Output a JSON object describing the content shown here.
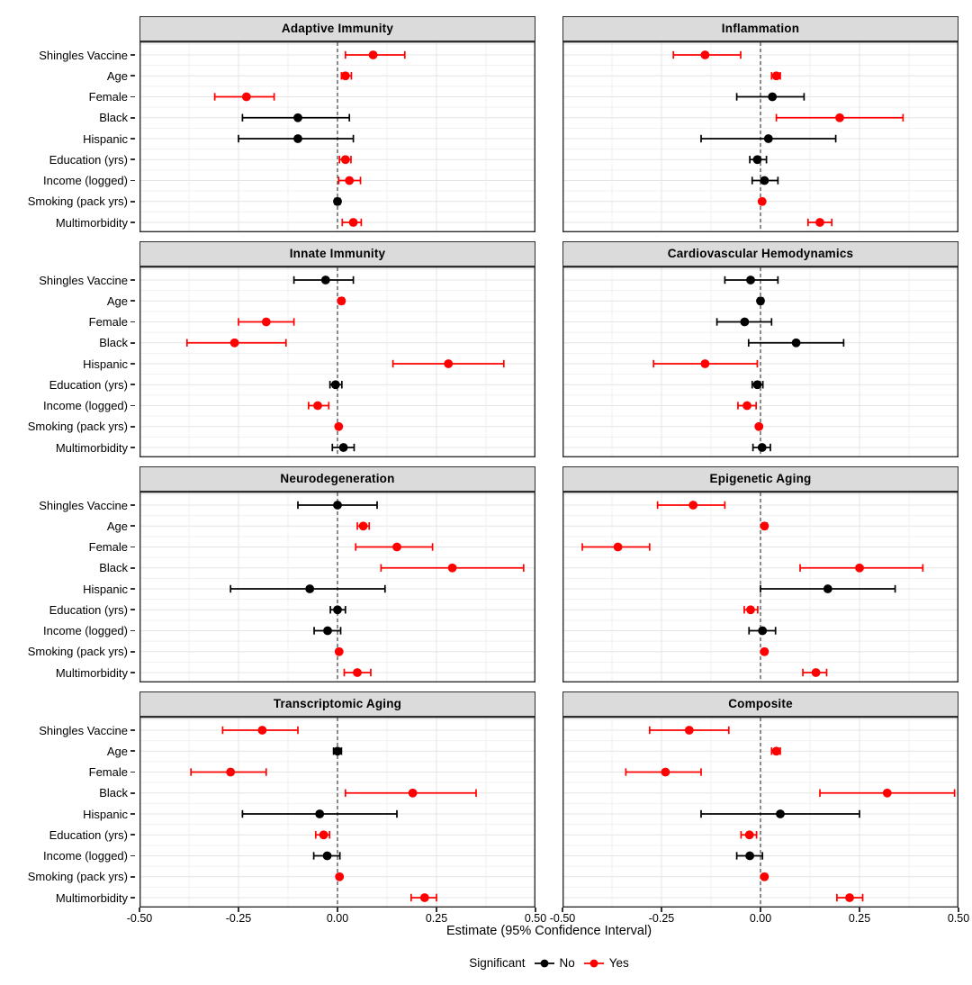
{
  "chart_data": {
    "type": "pointrange-forest",
    "layout": "4x2 small multiples, shared axes",
    "xlabel": "Estimate (95% Confidence Interval)",
    "xlim": [
      -0.5,
      0.5
    ],
    "x_ticks": [
      -0.5,
      -0.25,
      0,
      0.25,
      0.5
    ],
    "x_tick_labels": [
      "-0.50",
      "-0.25",
      "0.00",
      "0.25",
      "0.50"
    ],
    "grid": "on",
    "zero_reference_line": "dashed",
    "categories": [
      "Shingles Vaccine",
      "Age",
      "Female",
      "Black",
      "Hispanic",
      "Education (yrs)",
      "Income (logged)",
      "Smoking (pack yrs)",
      "Multimorbidity"
    ],
    "colors": {
      "no": "#000000",
      "yes": "#ff0000",
      "strip_fill": "#dbdbdb",
      "panel_border": "#2f2f2f",
      "grid_major": "#e4e4e4",
      "grid_minor": "#f1f1f1",
      "zero_line": "#4d4d4d"
    },
    "legend": {
      "title": "Significant",
      "position": "bottom center",
      "items": [
        {
          "label": "No",
          "color": "#000000"
        },
        {
          "label": "Yes",
          "color": "#ff0000"
        }
      ]
    },
    "panels": [
      {
        "title": "Adaptive Immunity",
        "estimate": [
          0.09,
          0.02,
          -0.23,
          -0.1,
          -0.1,
          0.02,
          0.03,
          0.0,
          0.04
        ],
        "ci_low": [
          0.02,
          0.01,
          -0.31,
          -0.24,
          -0.25,
          0.005,
          0.003,
          -0.006,
          0.012
        ],
        "ci_high": [
          0.17,
          0.035,
          -0.16,
          0.03,
          0.04,
          0.034,
          0.058,
          0.006,
          0.06
        ],
        "significant": [
          true,
          true,
          true,
          false,
          false,
          true,
          true,
          false,
          true
        ]
      },
      {
        "title": "Inflammation",
        "estimate": [
          -0.14,
          0.04,
          0.03,
          0.2,
          0.02,
          -0.008,
          0.01,
          0.004,
          0.15
        ],
        "ci_low": [
          -0.22,
          0.028,
          -0.06,
          0.04,
          -0.15,
          -0.027,
          -0.021,
          0.001,
          0.12
        ],
        "ci_high": [
          -0.05,
          0.05,
          0.11,
          0.36,
          0.19,
          0.015,
          0.044,
          0.009,
          0.18
        ],
        "significant": [
          true,
          true,
          false,
          true,
          false,
          false,
          false,
          true,
          true
        ]
      },
      {
        "title": "Innate Immunity",
        "estimate": [
          -0.03,
          0.01,
          -0.18,
          -0.26,
          0.28,
          -0.005,
          -0.05,
          0.003,
          0.015
        ],
        "ci_low": [
          -0.11,
          0.004,
          -0.25,
          -0.38,
          0.14,
          -0.019,
          -0.073,
          0.0,
          -0.013
        ],
        "ci_high": [
          0.04,
          0.016,
          -0.11,
          -0.13,
          0.42,
          0.011,
          -0.022,
          0.007,
          0.042
        ],
        "significant": [
          false,
          true,
          true,
          true,
          true,
          false,
          true,
          true,
          false
        ]
      },
      {
        "title": "Cardiovascular Hemodynamics",
        "estimate": [
          -0.025,
          0.0,
          -0.04,
          0.09,
          -0.14,
          -0.008,
          -0.034,
          -0.004,
          0.004
        ],
        "ci_low": [
          -0.09,
          -0.005,
          -0.11,
          -0.03,
          -0.27,
          -0.021,
          -0.057,
          -0.008,
          -0.019
        ],
        "ci_high": [
          0.044,
          0.006,
          0.028,
          0.21,
          -0.008,
          0.006,
          -0.011,
          -0.001,
          0.025
        ],
        "significant": [
          false,
          false,
          false,
          false,
          true,
          false,
          true,
          true,
          false
        ]
      },
      {
        "title": "Neurodegeneration",
        "estimate": [
          0.0,
          0.065,
          0.15,
          0.29,
          -0.07,
          0.0,
          -0.025,
          0.004,
          0.05
        ],
        "ci_low": [
          -0.1,
          0.05,
          0.046,
          0.11,
          -0.27,
          -0.018,
          -0.059,
          0.001,
          0.017
        ],
        "ci_high": [
          0.1,
          0.08,
          0.24,
          0.47,
          0.12,
          0.02,
          0.008,
          0.008,
          0.084
        ],
        "significant": [
          false,
          true,
          true,
          true,
          false,
          false,
          false,
          true,
          true
        ]
      },
      {
        "title": "Epigenetic Aging",
        "estimate": [
          -0.17,
          0.01,
          -0.36,
          0.25,
          0.17,
          -0.025,
          0.005,
          0.01,
          0.14
        ],
        "ci_low": [
          -0.26,
          0.005,
          -0.45,
          0.1,
          0.0,
          -0.041,
          -0.029,
          0.005,
          0.107
        ],
        "ci_high": [
          -0.09,
          0.016,
          -0.28,
          0.41,
          0.34,
          -0.007,
          0.038,
          0.015,
          0.167
        ],
        "significant": [
          true,
          true,
          true,
          true,
          false,
          true,
          false,
          true,
          true
        ]
      },
      {
        "title": "Transcriptomic Aging",
        "estimate": [
          -0.19,
          0.0,
          -0.27,
          0.19,
          -0.045,
          -0.035,
          -0.026,
          0.005,
          0.22
        ],
        "ci_low": [
          -0.29,
          -0.01,
          -0.37,
          0.02,
          -0.24,
          -0.055,
          -0.06,
          0.001,
          0.186
        ],
        "ci_high": [
          -0.1,
          0.01,
          -0.18,
          0.35,
          0.15,
          -0.02,
          0.006,
          0.009,
          0.25
        ],
        "significant": [
          true,
          false,
          true,
          true,
          false,
          true,
          false,
          true,
          true
        ]
      },
      {
        "title": "Composite",
        "estimate": [
          -0.18,
          0.04,
          -0.24,
          0.32,
          0.05,
          -0.028,
          -0.027,
          0.01,
          0.225
        ],
        "ci_low": [
          -0.28,
          0.028,
          -0.34,
          0.15,
          -0.15,
          -0.049,
          -0.06,
          0.005,
          0.193
        ],
        "ci_high": [
          -0.08,
          0.05,
          -0.15,
          0.49,
          0.25,
          -0.01,
          0.005,
          0.015,
          0.258
        ],
        "significant": [
          true,
          true,
          true,
          true,
          false,
          true,
          false,
          true,
          true
        ]
      }
    ]
  }
}
